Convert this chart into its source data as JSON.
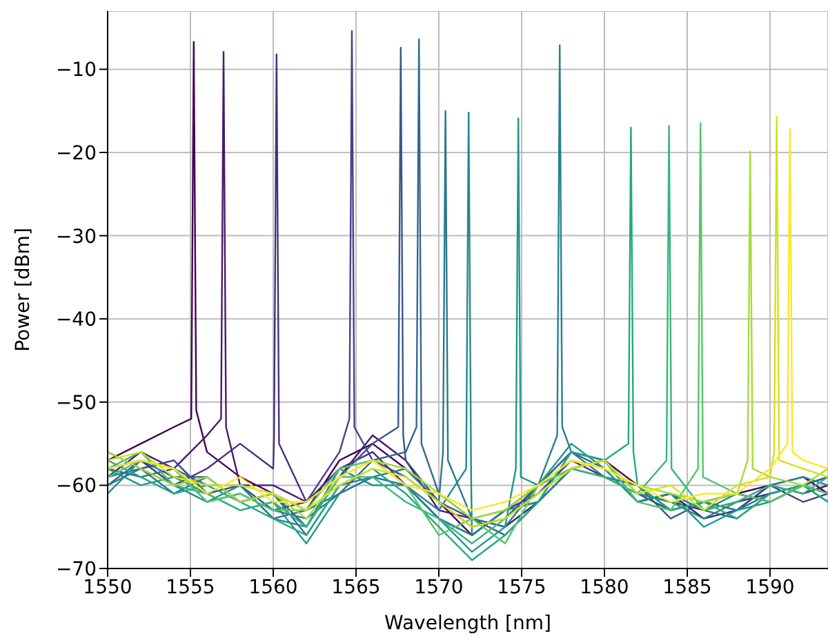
{
  "chart_data": {
    "type": "line",
    "xlabel": "Wavelength [nm]",
    "ylabel": "Power [dBm]",
    "xlim": [
      1550,
      1593.5
    ],
    "ylim": [
      -70,
      -3
    ],
    "xticks": [
      1550,
      1555,
      1560,
      1565,
      1570,
      1575,
      1580,
      1585,
      1590
    ],
    "yticks": [
      -70,
      -60,
      -50,
      -40,
      -30,
      -20,
      -10
    ],
    "grid": true,
    "marker": "none",
    "line_style": "solid",
    "series": [
      {
        "color": "#440154",
        "x": [
          1550,
          1552,
          1554,
          1555.05,
          1555.2,
          1555.35,
          1556,
          1558,
          1560,
          1562,
          1564,
          1566,
          1568,
          1570,
          1572,
          1574,
          1576,
          1578,
          1580,
          1582,
          1584,
          1586,
          1588,
          1590,
          1592,
          1593.5
        ],
        "values": [
          -57,
          -55,
          -53,
          -52,
          -6.7,
          -51,
          -56,
          -59,
          -61,
          -63,
          -57,
          -55,
          -58,
          -62,
          -66,
          -63,
          -60,
          -56,
          -57,
          -60,
          -63,
          -62,
          -61,
          -60,
          -59,
          -61
        ]
      },
      {
        "color": "#481a6c",
        "x": [
          1550,
          1552,
          1554,
          1556,
          1556.85,
          1557,
          1557.15,
          1558,
          1560,
          1562,
          1564,
          1566,
          1568,
          1570,
          1572,
          1574,
          1576,
          1578,
          1580,
          1582,
          1584,
          1586,
          1588,
          1590,
          1592,
          1593.5
        ],
        "values": [
          -59,
          -56,
          -58,
          -54,
          -52,
          -7.9,
          -53,
          -60,
          -60,
          -62,
          -59,
          -54,
          -57,
          -63,
          -64,
          -65,
          -62,
          -58,
          -57,
          -62,
          -61,
          -64,
          -63,
          -60,
          -61,
          -60
        ]
      },
      {
        "color": "#472f7d",
        "x": [
          1550,
          1552,
          1554,
          1556,
          1558,
          1560,
          1560.05,
          1560.2,
          1560.35,
          1562,
          1564,
          1566,
          1568,
          1570,
          1572,
          1574,
          1576,
          1578,
          1580,
          1582,
          1584,
          1586,
          1588,
          1590,
          1592,
          1593.5
        ],
        "values": [
          -58,
          -57,
          -60,
          -58,
          -55,
          -58,
          -54,
          -8.2,
          -55,
          -62,
          -58,
          -56,
          -60,
          -64,
          -66,
          -63,
          -61,
          -57,
          -59,
          -61,
          -62,
          -63,
          -62,
          -61,
          -60,
          -59
        ]
      },
      {
        "color": "#414487",
        "x": [
          1550,
          1552,
          1554,
          1556,
          1558,
          1560,
          1562,
          1564,
          1564.6,
          1564.75,
          1564.9,
          1566,
          1568,
          1570,
          1572,
          1574,
          1576,
          1578,
          1580,
          1582,
          1584,
          1586,
          1588,
          1590,
          1592,
          1593.5
        ],
        "values": [
          -56,
          -58,
          -57,
          -61,
          -60,
          -63,
          -62,
          -56,
          -52,
          -5.4,
          -53,
          -57,
          -59,
          -62,
          -65,
          -64,
          -60,
          -58,
          -57,
          -61,
          -63,
          -62,
          -63,
          -60,
          -62,
          -61
        ]
      },
      {
        "color": "#39568c",
        "x": [
          1550,
          1552,
          1554,
          1556,
          1558,
          1560,
          1562,
          1564,
          1566,
          1567.55,
          1567.7,
          1567.85,
          1568,
          1570,
          1572,
          1574,
          1576,
          1578,
          1580,
          1582,
          1584,
          1586,
          1588,
          1590,
          1592,
          1593.5
        ],
        "values": [
          -60,
          -57,
          -59,
          -59,
          -62,
          -61,
          -65,
          -59,
          -55,
          -53,
          -7.4,
          -54,
          -57,
          -62,
          -64,
          -66,
          -62,
          -58,
          -59,
          -60,
          -64,
          -62,
          -61,
          -62,
          -60,
          -59
        ]
      },
      {
        "color": "#31688e",
        "x": [
          1550,
          1552,
          1554,
          1556,
          1558,
          1560,
          1562,
          1564,
          1566,
          1568,
          1568.65,
          1568.8,
          1568.95,
          1570,
          1572,
          1574,
          1576,
          1578,
          1580,
          1582,
          1584,
          1586,
          1588,
          1590,
          1592,
          1593.5
        ],
        "values": [
          -58,
          -59,
          -58,
          -60,
          -60,
          -64,
          -63,
          -61,
          -57,
          -56,
          -53,
          -6.4,
          -55,
          -61,
          -64,
          -63,
          -62,
          -56,
          -58,
          -62,
          -61,
          -63,
          -64,
          -61,
          -60,
          -62
        ]
      },
      {
        "color": "#2a788e",
        "x": [
          1550,
          1552,
          1554,
          1556,
          1558,
          1560,
          1562,
          1564,
          1566,
          1568,
          1570,
          1570.25,
          1570.4,
          1570.55,
          1572,
          1574,
          1576,
          1578,
          1580,
          1582,
          1584,
          1586,
          1588,
          1590,
          1592,
          1593.5
        ],
        "values": [
          -59,
          -58,
          -61,
          -59,
          -62,
          -61,
          -66,
          -60,
          -59,
          -58,
          -62,
          -56,
          -15,
          -57,
          -64,
          -65,
          -60,
          -56,
          -59,
          -60,
          -63,
          -62,
          -63,
          -61,
          -60,
          -61
        ]
      },
      {
        "color": "#23888e",
        "x": [
          1550,
          1552,
          1554,
          1556,
          1558,
          1560,
          1562,
          1564,
          1566,
          1568,
          1570,
          1571.65,
          1571.8,
          1571.95,
          1572,
          1574,
          1576,
          1578,
          1580,
          1582,
          1584,
          1586,
          1588,
          1590,
          1592,
          1593.5
        ],
        "values": [
          -61,
          -57,
          -58,
          -62,
          -60,
          -64,
          -65,
          -58,
          -60,
          -60,
          -63,
          -58,
          -15.2,
          -59,
          -66,
          -63,
          -62,
          -58,
          -57,
          -61,
          -62,
          -64,
          -62,
          -60,
          -59,
          -60
        ]
      },
      {
        "color": "#1f988b",
        "x": [
          1550,
          1552,
          1554,
          1556,
          1558,
          1560,
          1562,
          1564,
          1566,
          1568,
          1570,
          1572,
          1574,
          1574.65,
          1574.8,
          1574.95,
          1576,
          1578,
          1580,
          1582,
          1584,
          1586,
          1588,
          1590,
          1592,
          1593.5
        ],
        "values": [
          -58,
          -60,
          -59,
          -61,
          -63,
          -62,
          -67,
          -61,
          -59,
          -60,
          -64,
          -68,
          -65,
          -58,
          -15.9,
          -59,
          -60,
          -55,
          -58,
          -62,
          -61,
          -65,
          -63,
          -62,
          -60,
          -61
        ]
      },
      {
        "color": "#2a7f8e",
        "x": [
          1550,
          1552,
          1554,
          1556,
          1558,
          1560,
          1562,
          1564,
          1566,
          1568,
          1570,
          1572,
          1574,
          1576,
          1577.15,
          1577.3,
          1577.45,
          1578,
          1580,
          1582,
          1584,
          1586,
          1588,
          1590,
          1592,
          1593.5
        ],
        "values": [
          -60,
          -58,
          -60,
          -62,
          -61,
          -63,
          -64,
          -61,
          -59,
          -60,
          -64,
          -66,
          -63,
          -60,
          -54,
          -7.1,
          -53,
          -56,
          -57,
          -62,
          -61,
          -63,
          -61,
          -62,
          -60,
          -61
        ]
      },
      {
        "color": "#22a884",
        "x": [
          1550,
          1552,
          1554,
          1556,
          1558,
          1560,
          1562,
          1564,
          1566,
          1568,
          1570,
          1572,
          1574,
          1576,
          1578,
          1580,
          1581.45,
          1581.6,
          1581.75,
          1582,
          1584,
          1586,
          1588,
          1590,
          1592,
          1593.5
        ],
        "values": [
          -57,
          -59,
          -61,
          -60,
          -62,
          -64,
          -66,
          -60,
          -58,
          -61,
          -65,
          -69,
          -66,
          -62,
          -56,
          -57,
          -55,
          -17,
          -56,
          -60,
          -63,
          -62,
          -64,
          -61,
          -60,
          -62
        ]
      },
      {
        "color": "#35b779",
        "x": [
          1550,
          1552,
          1554,
          1556,
          1558,
          1560,
          1562,
          1564,
          1566,
          1568,
          1570,
          1572,
          1574,
          1576,
          1578,
          1580,
          1582,
          1583.75,
          1583.9,
          1584.05,
          1586,
          1588,
          1590,
          1592,
          1593.5
        ],
        "values": [
          -58,
          -56,
          -60,
          -61,
          -63,
          -62,
          -65,
          -59,
          -59,
          -62,
          -64,
          -67,
          -64,
          -61,
          -58,
          -59,
          -61,
          -57,
          -16.8,
          -58,
          -63,
          -62,
          -60,
          -61,
          -59
        ]
      },
      {
        "color": "#54c568",
        "x": [
          1550,
          1552,
          1554,
          1556,
          1558,
          1560,
          1562,
          1564,
          1566,
          1568,
          1570,
          1572,
          1574,
          1576,
          1578,
          1580,
          1582,
          1584,
          1585.65,
          1585.8,
          1585.95,
          1588,
          1590,
          1592,
          1593.5
        ],
        "values": [
          -59,
          -57,
          -58,
          -62,
          -61,
          -63,
          -63,
          -58,
          -57,
          -60,
          -66,
          -64,
          -67,
          -60,
          -58,
          -57,
          -62,
          -63,
          -58,
          -16.5,
          -59,
          -61,
          -62,
          -60,
          -61
        ]
      },
      {
        "color": "#a5db36",
        "x": [
          1550,
          1552,
          1554,
          1556,
          1558,
          1560,
          1562,
          1564,
          1566,
          1568,
          1570,
          1572,
          1574,
          1576,
          1578,
          1580,
          1582,
          1584,
          1586,
          1588,
          1588.65,
          1588.8,
          1588.95,
          1590,
          1592,
          1593.5
        ],
        "values": [
          -56,
          -58,
          -60,
          -59,
          -62,
          -61,
          -64,
          -59,
          -57,
          -58,
          -61,
          -64,
          -63,
          -60,
          -57,
          -58,
          -60,
          -61,
          -62,
          -61,
          -57,
          -19.9,
          -58,
          -59,
          -60,
          -58
        ]
      },
      {
        "color": "#d2e21b",
        "x": [
          1550,
          1552,
          1554,
          1556,
          1558,
          1560,
          1562,
          1564,
          1566,
          1568,
          1570,
          1572,
          1574,
          1576,
          1578,
          1580,
          1582,
          1584,
          1586,
          1588,
          1590,
          1590.25,
          1590.4,
          1590.55,
          1592,
          1593.5
        ],
        "values": [
          -57,
          -56,
          -59,
          -60,
          -60,
          -61,
          -63,
          -60,
          -58,
          -59,
          -62,
          -65,
          -64,
          -61,
          -58,
          -57,
          -61,
          -60,
          -63,
          -60,
          -59,
          -56,
          -15.7,
          -57,
          -58,
          -59
        ]
      },
      {
        "color": "#fde725",
        "x": [
          1550,
          1552,
          1554,
          1556,
          1558,
          1560,
          1562,
          1564,
          1566,
          1568,
          1570,
          1572,
          1574,
          1576,
          1578,
          1580,
          1582,
          1584,
          1586,
          1588,
          1590,
          1591.05,
          1591.2,
          1591.35,
          1592,
          1593.5
        ],
        "values": [
          -58,
          -57,
          -58,
          -61,
          -59,
          -62,
          -62,
          -59,
          -57,
          -60,
          -61,
          -63,
          -62,
          -60,
          -57,
          -58,
          -60,
          -62,
          -61,
          -61,
          -58,
          -55,
          -17.2,
          -56,
          -57,
          -58
        ]
      }
    ]
  }
}
